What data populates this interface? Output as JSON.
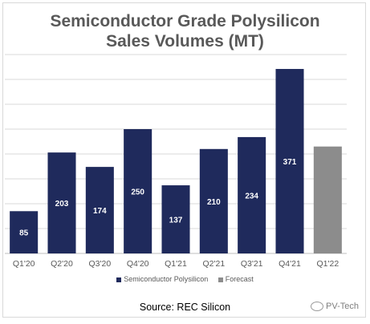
{
  "chart_data": {
    "type": "bar",
    "title": "Semiconductor Grade Polysilicon Sales Volumes (MT)",
    "title_lines": [
      "Semiconductor Grade Polysilicon",
      "Sales Volumes (MT)"
    ],
    "categories": [
      "Q1'20",
      "Q2'20",
      "Q3'20",
      "Q4'20",
      "Q1'21",
      "Q2'21",
      "Q3'21",
      "Q4'21",
      "Q1'22"
    ],
    "series": [
      {
        "name": "Semiconductor Polysilicon",
        "color": "#1f2a5c",
        "values": [
          85,
          203,
          174,
          250,
          137,
          210,
          234,
          371,
          null
        ],
        "labels": [
          "85",
          "203",
          "174",
          "250",
          "137",
          "210",
          "234",
          "371",
          ""
        ]
      },
      {
        "name": "Forecast",
        "color": "#8c8c8c",
        "values": [
          null,
          null,
          null,
          null,
          null,
          null,
          null,
          null,
          215
        ],
        "labels": [
          "",
          "",
          "",
          "",
          "",
          "",
          "",
          "",
          ""
        ]
      }
    ],
    "ylim": [
      0,
      400
    ],
    "gridline_step": 50,
    "y_tick_labels_visible": false,
    "grid": true,
    "legend_position": "bottom",
    "xlabel": "",
    "ylabel": ""
  },
  "source_text": "Source: REC Silicon",
  "watermark_text": "PV-Tech",
  "watermark_icon": "wechat-icon"
}
